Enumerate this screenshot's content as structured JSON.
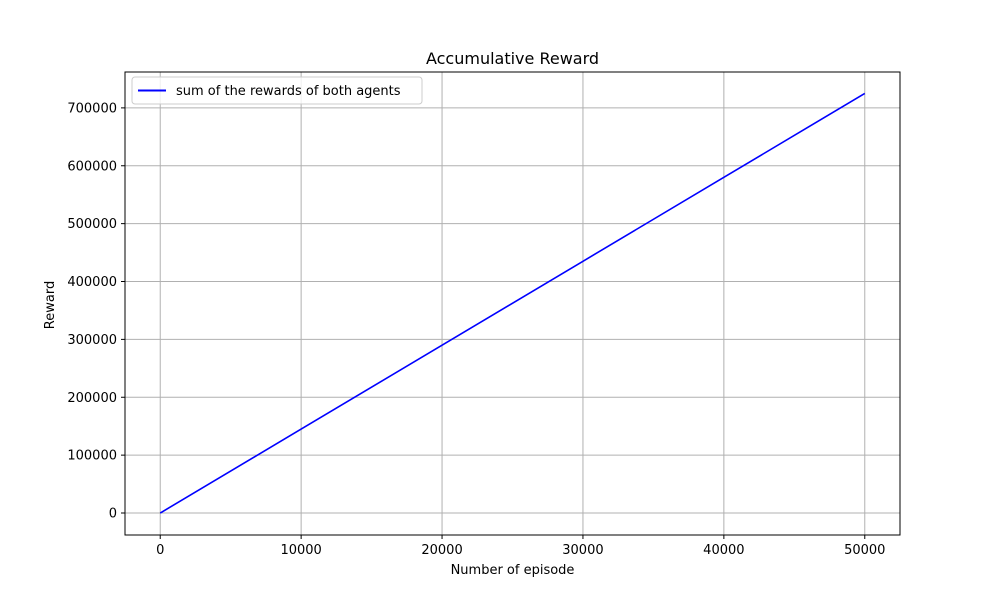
{
  "chart_data": {
    "type": "line",
    "title": "Accumulative Reward",
    "xlabel": "Number of episode",
    "ylabel": "Reward",
    "xlim": [
      -2500,
      52500
    ],
    "ylim": [
      -38000,
      762000
    ],
    "xticks": [
      0,
      10000,
      20000,
      30000,
      40000,
      50000
    ],
    "yticks": [
      0,
      100000,
      200000,
      300000,
      400000,
      500000,
      600000,
      700000
    ],
    "grid": true,
    "legend_position": "upper-left",
    "series": [
      {
        "name": "sum of the rewards of both agents",
        "color": "#0000ff",
        "x": [
          0,
          10000,
          20000,
          30000,
          40000,
          50000
        ],
        "y": [
          0,
          145000,
          290000,
          435000,
          580000,
          725000
        ]
      }
    ]
  }
}
